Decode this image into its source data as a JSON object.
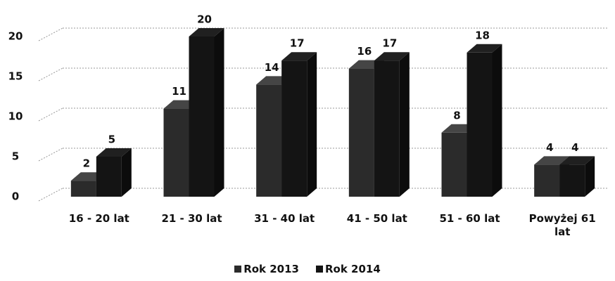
{
  "chart_data": {
    "type": "bar3d",
    "categories": [
      "16 - 20 lat",
      "21 - 30 lat",
      "31 - 40 lat",
      "41 - 50 lat",
      "51 - 60 lat",
      "Powyżej 61 lat"
    ],
    "series": [
      {
        "name": "Rok 2013",
        "color": "#2b2b2b",
        "values": [
          2,
          11,
          14,
          16,
          8,
          4
        ]
      },
      {
        "name": "Rok 2014",
        "color": "#141414",
        "values": [
          5,
          20,
          17,
          17,
          18,
          4
        ]
      }
    ],
    "ylim": [
      0,
      20
    ],
    "yticks": [
      0,
      5,
      10,
      15,
      20
    ],
    "grid": true,
    "legend": "bottom"
  }
}
